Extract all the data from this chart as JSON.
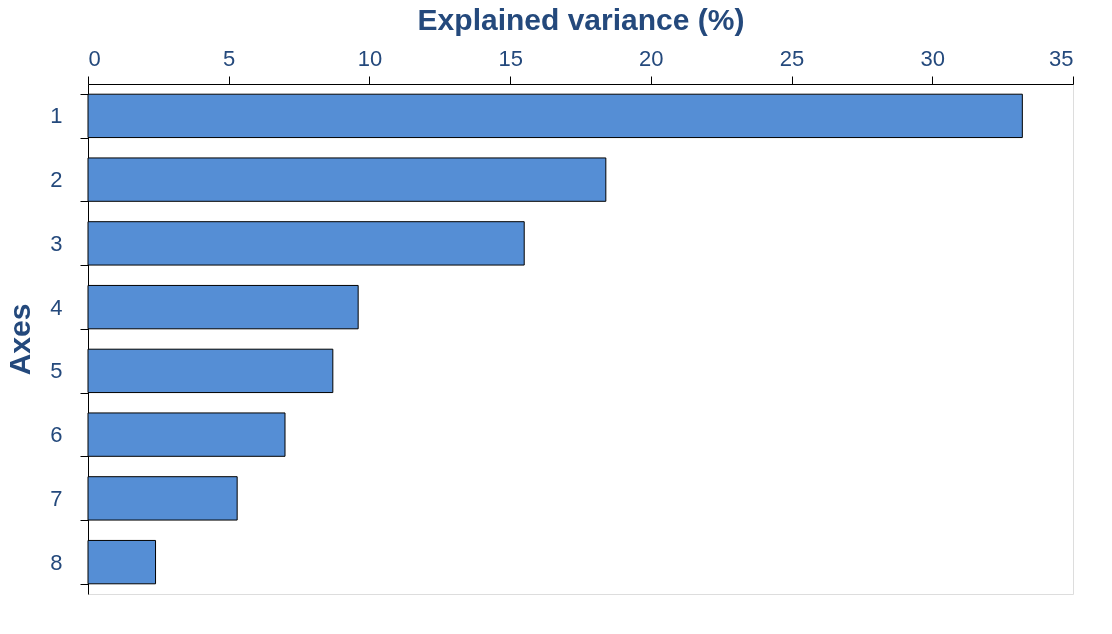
{
  "chart_data": {
    "type": "bar",
    "orientation": "horizontal",
    "xlabel": "Explained variance (%)",
    "ylabel": "Axes",
    "categories": [
      "1",
      "2",
      "3",
      "4",
      "5",
      "6",
      "7",
      "8"
    ],
    "values": [
      33.2,
      18.4,
      15.5,
      9.6,
      8.7,
      7.0,
      5.3,
      2.4
    ],
    "color": "#558ed5",
    "xlim": [
      0,
      35
    ],
    "xticks": [
      0,
      5,
      10,
      15,
      20,
      25,
      30,
      35
    ],
    "grid": false
  }
}
